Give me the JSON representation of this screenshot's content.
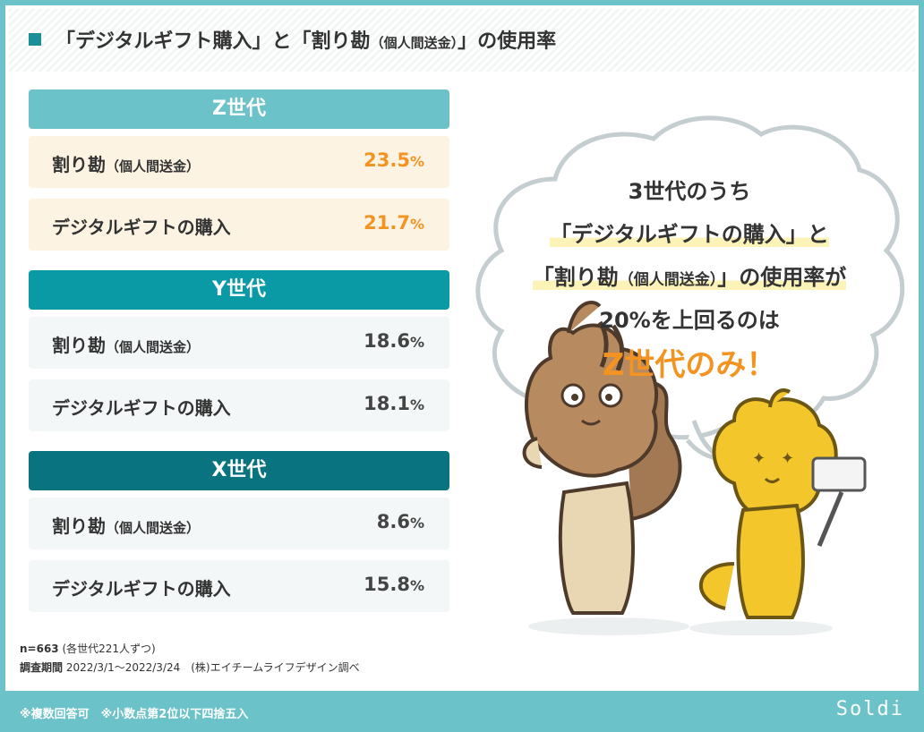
{
  "header": {
    "title_main": "「デジタルギフト購入」と「割り勘",
    "title_small": "（個人間送金）",
    "title_end": "」の使用率"
  },
  "chart_data": {
    "type": "table",
    "groups": [
      {
        "name": "Z世代",
        "color": "#6bc2c8",
        "rows": [
          {
            "label": "割り勘",
            "label_sub": "（個人間送金）",
            "value": 23.5
          },
          {
            "label": "デジタルギフトの購入",
            "label_sub": "",
            "value": 21.7
          }
        ]
      },
      {
        "name": "Y世代",
        "color": "#0a9aa6",
        "rows": [
          {
            "label": "割り勘",
            "label_sub": "（個人間送金）",
            "value": 18.6
          },
          {
            "label": "デジタルギフトの購入",
            "label_sub": "",
            "value": 18.1
          }
        ]
      },
      {
        "name": "X世代",
        "color": "#097480",
        "rows": [
          {
            "label": "割り勘",
            "label_sub": "（個人間送金）",
            "value": 8.6
          },
          {
            "label": "デジタルギフトの購入",
            "label_sub": "",
            "value": 15.8
          }
        ]
      }
    ],
    "unit": "%",
    "highlight_color": "#f39322"
  },
  "bubble": {
    "line1": "3世代のうち",
    "line2": "「デジタルギフトの購入」と",
    "line3_main": "「割り勘",
    "line3_small": "（個人間送金）",
    "line3_end": "」の使用率が",
    "line4": "20%を上回るのは",
    "line5": "Z世代のみ！"
  },
  "notes": {
    "n_bold": "n=663",
    "n_rest": " (各世代221人ずつ)",
    "period_bold": "調査期間",
    "period_rest": " 2022/3/1〜2022/3/24　(株)エイチームライフデザイン調べ"
  },
  "footer": {
    "footnote": "※複数回答可　※小数点第2位以下四捨五入",
    "logo": "Soldi"
  },
  "colors": {
    "frame": "#6bc2c8",
    "orange": "#f39322"
  }
}
